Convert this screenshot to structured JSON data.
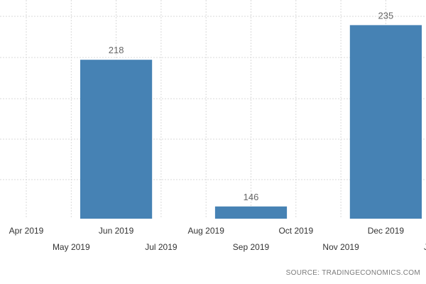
{
  "chart_data": {
    "type": "bar",
    "title": "",
    "xlabel": "",
    "ylabel": "",
    "categories": [
      "Apr 2019",
      "May 2019",
      "Jun 2019",
      "Jul 2019",
      "Aug 2019",
      "Sep 2019",
      "Oct 2019",
      "Nov 2019",
      "Dec 2019",
      "Jan"
    ],
    "bars": [
      {
        "start": "May 2019",
        "end": "Jul 2019",
        "value": 218,
        "label": "218"
      },
      {
        "start": "Aug 2019",
        "end": "Oct 2019",
        "value": 146,
        "label": "146"
      },
      {
        "start": "Nov 2019",
        "end": "Jan",
        "value": 235,
        "label": "235"
      }
    ],
    "ylim": [
      140,
      240
    ],
    "grid": true,
    "bar_color": "#4682b4",
    "source": "SOURCE: TRADINGECONOMICS.COM"
  }
}
